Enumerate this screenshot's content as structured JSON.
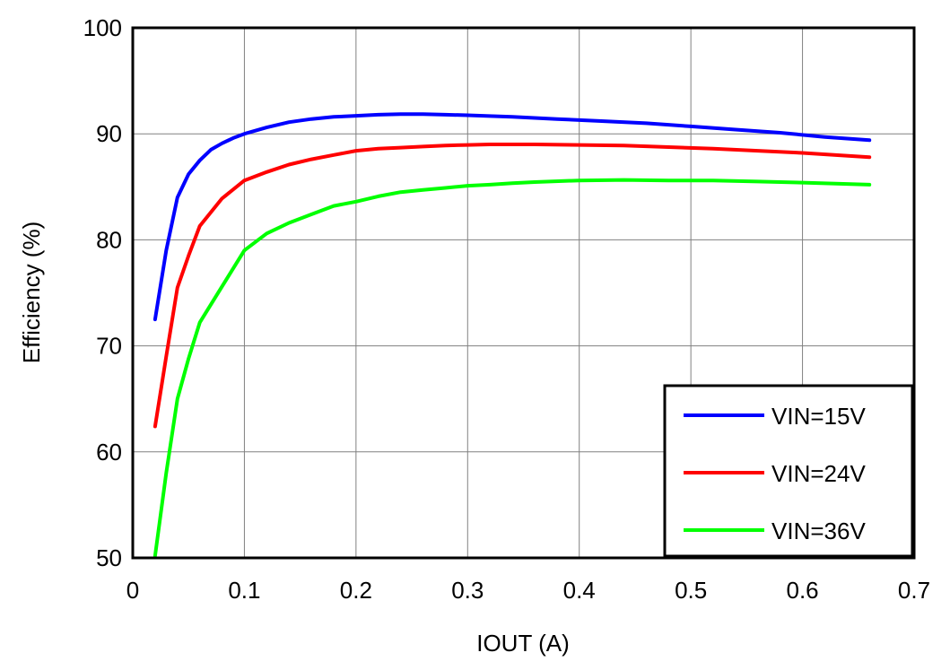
{
  "chart_data": {
    "type": "line",
    "title": "",
    "xlabel": "IOUT (A)",
    "ylabel": "Efficiency (%)",
    "xlim": [
      0,
      0.7
    ],
    "ylim": [
      50,
      100
    ],
    "grid": true,
    "legend_position": "bottom-right",
    "x_ticks": [
      0,
      0.1,
      0.2,
      0.3,
      0.4,
      0.5,
      0.6,
      0.7
    ],
    "x_tick_labels": [
      "0",
      "0.1",
      "0.2",
      "0.3",
      "0.4",
      "0.5",
      "0.6",
      "0.7"
    ],
    "y_ticks": [
      50,
      60,
      70,
      80,
      90,
      100
    ],
    "y_tick_labels": [
      "50",
      "60",
      "70",
      "80",
      "90",
      "100"
    ],
    "series": [
      {
        "name": "VIN=15V",
        "color": "#0000ff",
        "x": [
          0.02,
          0.03,
          0.04,
          0.05,
          0.06,
          0.07,
          0.08,
          0.09,
          0.1,
          0.12,
          0.14,
          0.16,
          0.18,
          0.2,
          0.22,
          0.24,
          0.26,
          0.28,
          0.3,
          0.34,
          0.38,
          0.42,
          0.46,
          0.5,
          0.54,
          0.58,
          0.62,
          0.66
        ],
        "y": [
          72.5,
          79.0,
          84.0,
          86.2,
          87.5,
          88.5,
          89.1,
          89.6,
          90.0,
          90.6,
          91.1,
          91.4,
          91.6,
          91.7,
          91.8,
          91.85,
          91.85,
          91.8,
          91.75,
          91.6,
          91.4,
          91.2,
          91.0,
          90.7,
          90.4,
          90.1,
          89.7,
          89.4
        ]
      },
      {
        "name": "VIN=24V",
        "color": "#ff0000",
        "x": [
          0.02,
          0.03,
          0.04,
          0.05,
          0.06,
          0.08,
          0.1,
          0.12,
          0.14,
          0.16,
          0.18,
          0.2,
          0.22,
          0.24,
          0.26,
          0.28,
          0.3,
          0.32,
          0.36,
          0.4,
          0.44,
          0.48,
          0.52,
          0.56,
          0.6,
          0.66
        ],
        "y": [
          62.4,
          69.0,
          75.5,
          78.5,
          81.3,
          83.9,
          85.6,
          86.4,
          87.1,
          87.6,
          88.0,
          88.4,
          88.6,
          88.7,
          88.8,
          88.9,
          88.95,
          89.0,
          89.0,
          88.95,
          88.9,
          88.75,
          88.6,
          88.4,
          88.2,
          87.8
        ]
      },
      {
        "name": "VIN=36V",
        "color": "#00ff00",
        "x": [
          0.02,
          0.03,
          0.04,
          0.05,
          0.06,
          0.08,
          0.1,
          0.12,
          0.14,
          0.16,
          0.18,
          0.2,
          0.22,
          0.24,
          0.26,
          0.28,
          0.3,
          0.32,
          0.34,
          0.36,
          0.4,
          0.44,
          0.48,
          0.52,
          0.56,
          0.6,
          0.66
        ],
        "y": [
          50.2,
          58.0,
          65.0,
          68.8,
          72.2,
          75.6,
          79.0,
          80.6,
          81.6,
          82.4,
          83.2,
          83.6,
          84.1,
          84.5,
          84.7,
          84.9,
          85.1,
          85.2,
          85.35,
          85.45,
          85.6,
          85.65,
          85.6,
          85.6,
          85.5,
          85.4,
          85.2
        ]
      }
    ]
  }
}
